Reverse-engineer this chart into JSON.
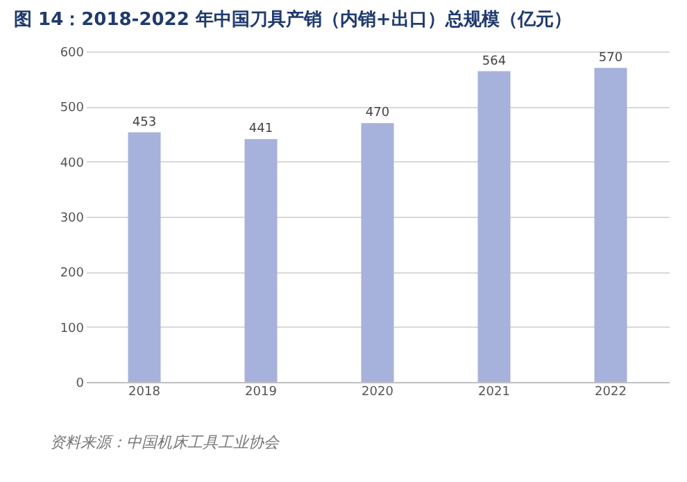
{
  "chart_data": {
    "type": "bar",
    "title": "图 14：2018-2022 年中国刀具产销（内销+出口）总规模（亿元）",
    "categories": [
      "2018",
      "2019",
      "2020",
      "2021",
      "2022"
    ],
    "values": [
      453,
      441,
      470,
      564,
      570
    ],
    "color": "#a6b2db",
    "ylim": [
      0,
      600
    ],
    "yticks": [
      0,
      100,
      200,
      300,
      400,
      500,
      600
    ],
    "grid": "y",
    "data_labels": true,
    "annotations": [
      "资料来源：中国机床工具工业协会"
    ]
  }
}
